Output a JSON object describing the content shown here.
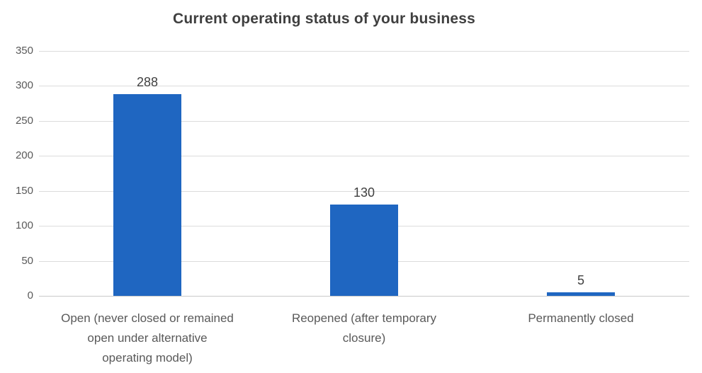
{
  "title": "Current operating status of your business",
  "chart_data": {
    "type": "bar",
    "title": "Current operating status of your business",
    "categories": [
      "Open (never closed or remained open under alternative operating model)",
      "Reopened (after temporary closure)",
      "Permanently closed"
    ],
    "category_lines": [
      [
        "Open (never closed or remained",
        "open under alternative",
        "operating model)"
      ],
      [
        "Reopened (after temporary",
        "closure)"
      ],
      [
        "Permanently closed"
      ]
    ],
    "values": [
      288,
      130,
      5
    ],
    "data_labels": [
      "288",
      "130",
      "5"
    ],
    "xlabel": "",
    "ylabel": "",
    "ylim": [
      0,
      350
    ],
    "ytick_step": 50,
    "yticks": [
      0,
      50,
      100,
      150,
      200,
      250,
      300,
      350
    ],
    "grid": true,
    "legend_position": "none",
    "colors": {
      "bar": "#1F66C1",
      "gridline": "#DCDCDC",
      "axis_line": "#C9C9C9",
      "title": "#3F3F3F",
      "tick_label": "#595959",
      "category_label": "#595959",
      "value_label": "#404040",
      "background": "#FFFFFF"
    }
  }
}
